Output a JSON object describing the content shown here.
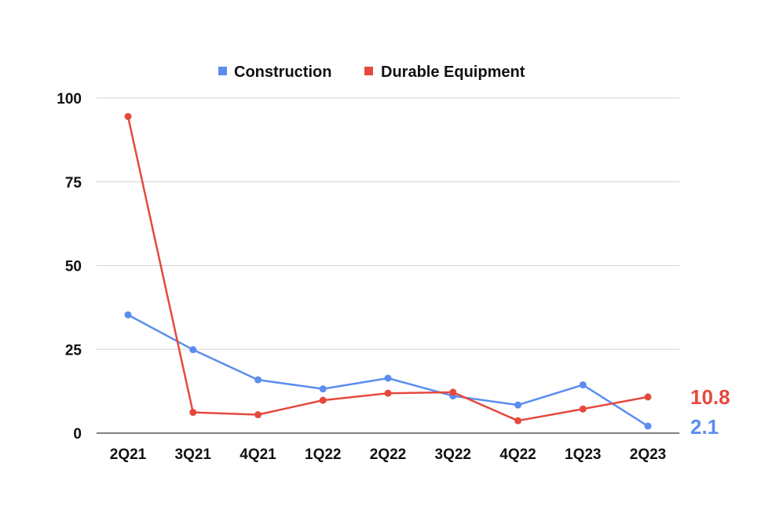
{
  "chart_data": {
    "type": "line",
    "categories": [
      "2Q21",
      "3Q21",
      "4Q21",
      "1Q22",
      "2Q22",
      "3Q22",
      "4Q22",
      "1Q23",
      "2Q23"
    ],
    "series": [
      {
        "name": "Construction",
        "color": "#5b8def",
        "values": [
          35.3,
          24.9,
          15.9,
          13.2,
          16.4,
          11.1,
          8.4,
          14.4,
          2.1
        ],
        "end_label": "2.1"
      },
      {
        "name": "Durable Equipment",
        "color": "#e5493d",
        "values": [
          94.5,
          6.2,
          5.5,
          9.8,
          11.9,
          12.2,
          3.7,
          7.2,
          10.8
        ],
        "end_label": "10.8"
      }
    ],
    "yticks": [
      "0",
      "25",
      "50",
      "75",
      "100"
    ],
    "ylim": [
      0,
      100
    ],
    "grid": true,
    "legend_position": "top-center"
  }
}
